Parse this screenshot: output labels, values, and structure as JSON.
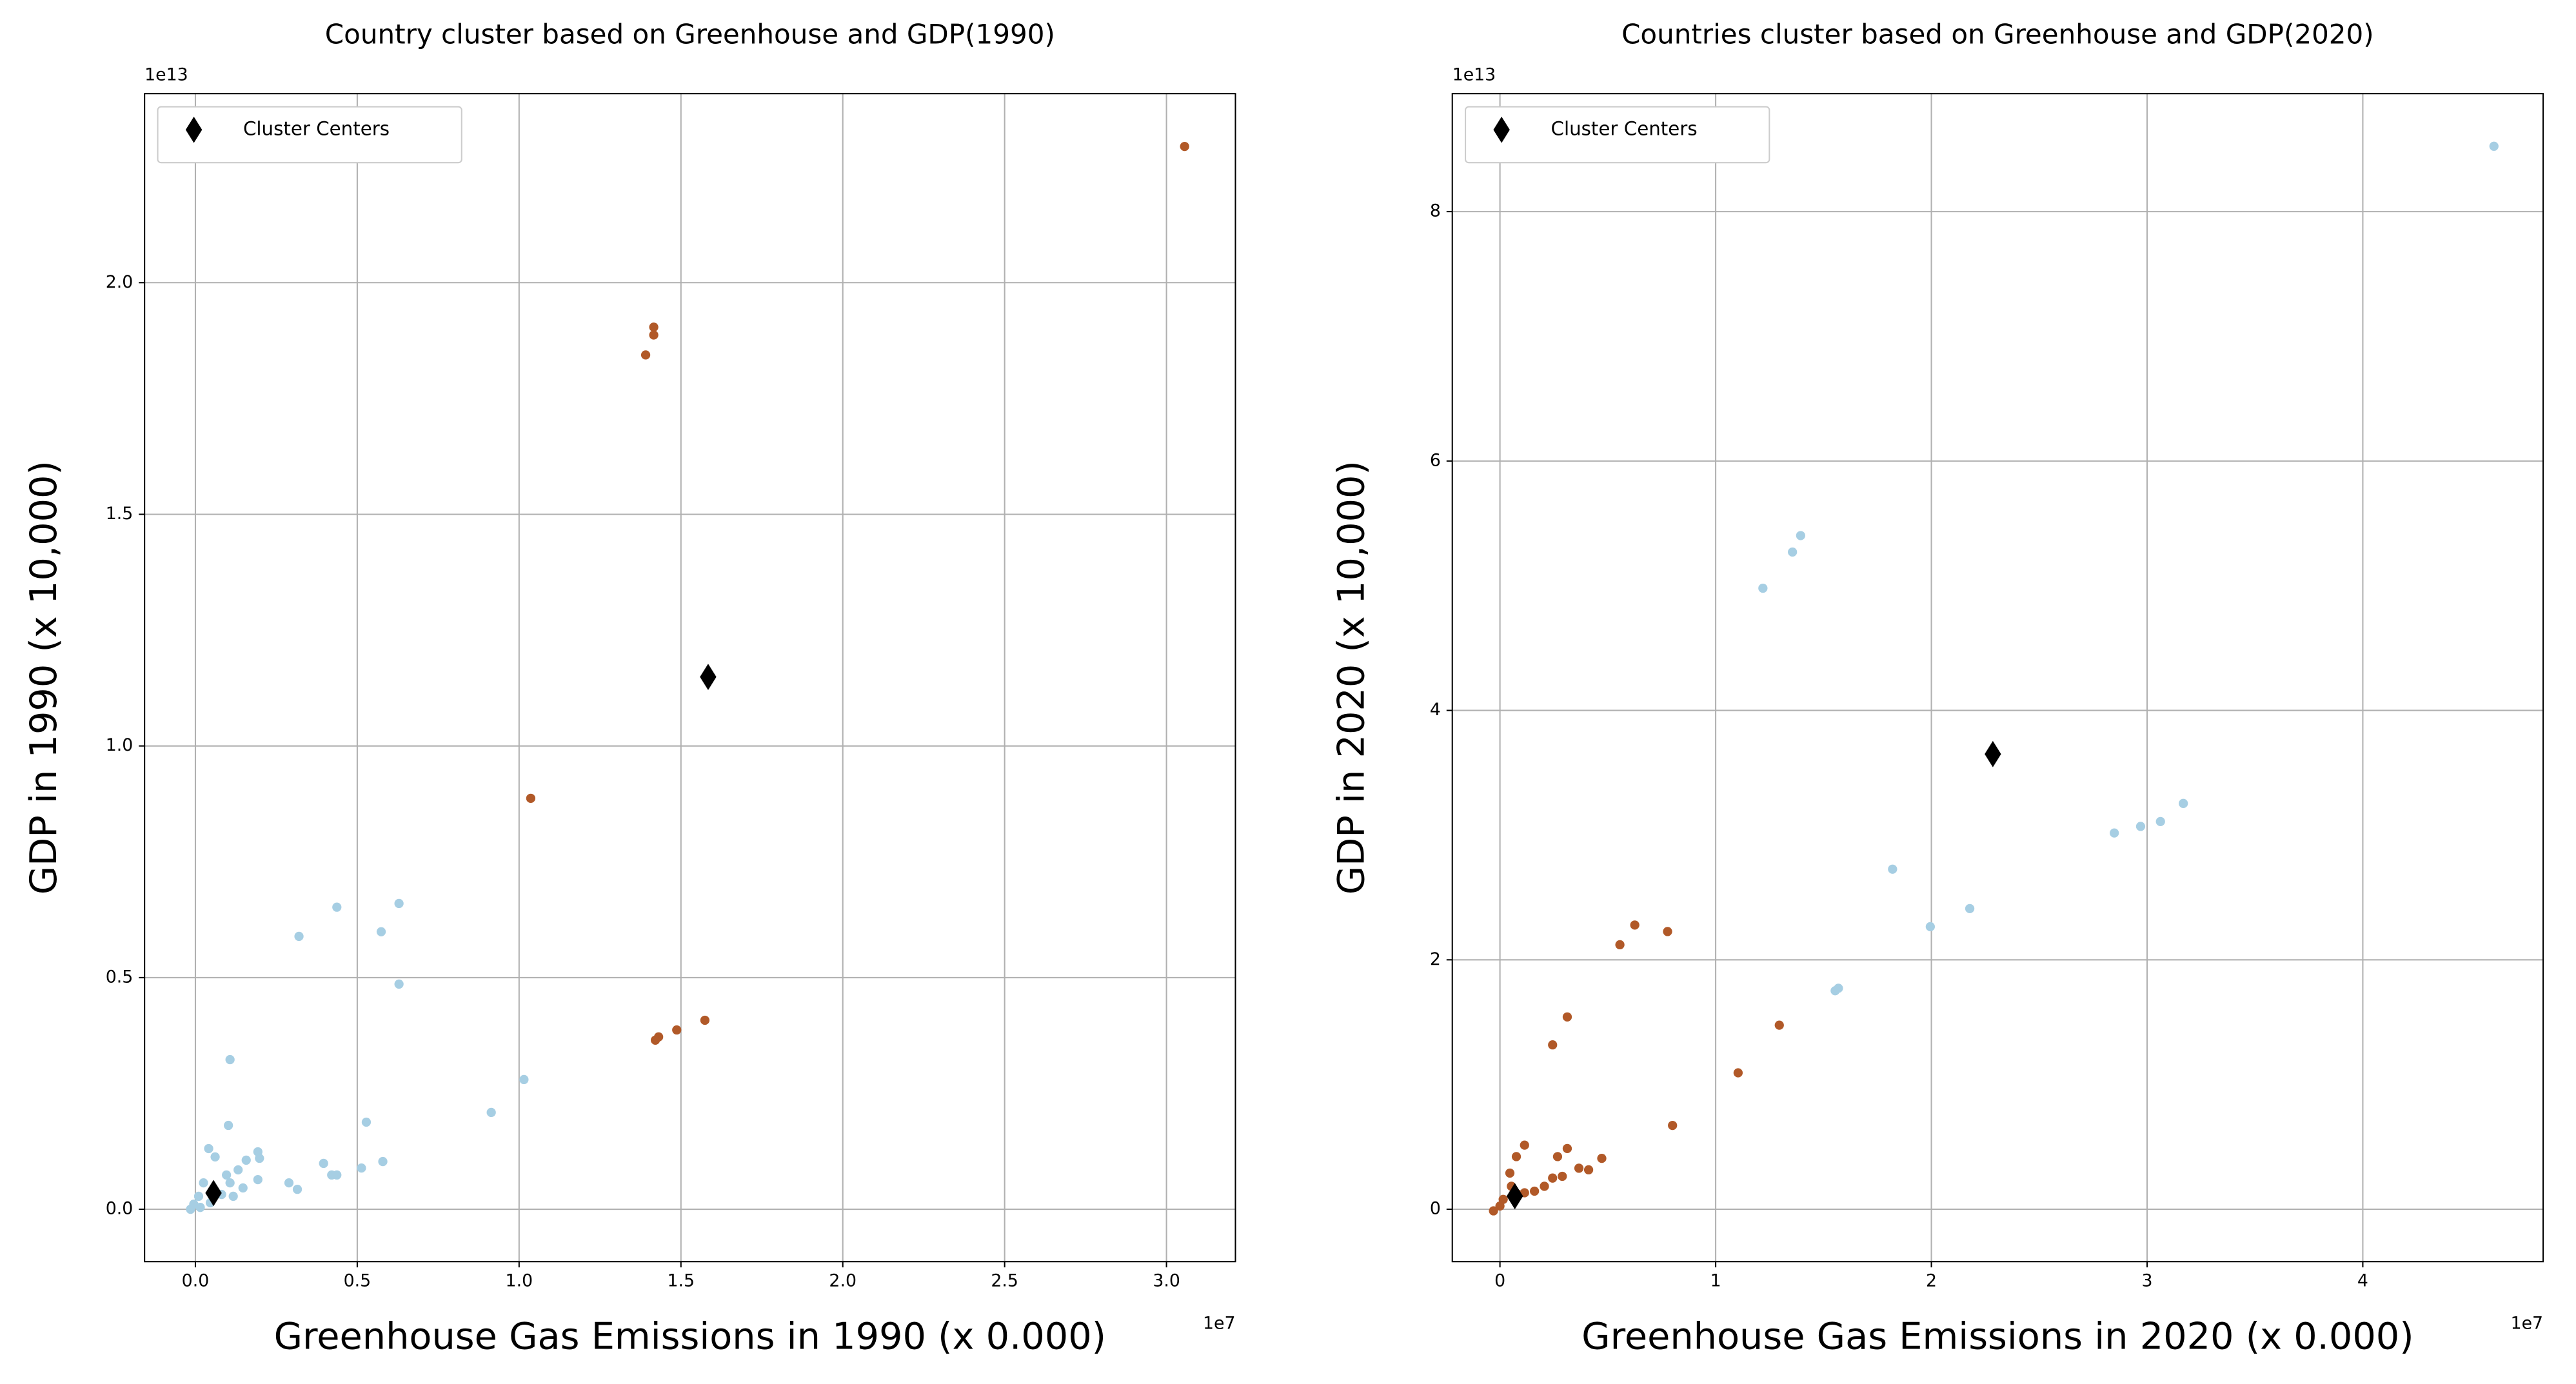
{
  "chart_data": [
    {
      "type": "scatter",
      "title": "Country cluster based on Greenhouse and GDP(1990)",
      "x_label": "Greenhouse Gas Emissions in 1990 (x 0.000)",
      "y_label": "GDP in 1990 (x 10,000)",
      "x_offset": "1e7",
      "y_offset": "1e13",
      "xlim": [
        -0.157,
        3.213
      ],
      "ylim": [
        -0.113,
        2.408
      ],
      "xticks": [
        {
          "value": 0,
          "label": "0.0"
        },
        0.5,
        {
          "value": 1,
          "label": "1.0"
        },
        1.5,
        {
          "value": 2,
          "label": "2.0"
        },
        2.5,
        {
          "value": 3,
          "label": "3.0"
        }
      ],
      "yticks": [
        {
          "value": 0,
          "label": "0.0"
        },
        0.5,
        {
          "value": 1,
          "label": "1.0"
        },
        1.5,
        {
          "value": 2,
          "label": "2.0"
        }
      ],
      "grid": true,
      "legend": "upper left",
      "series": [
        {
          "color": "#b15928",
          "marker": "circle",
          "x": [
            3.056,
            1.416,
            1.416,
            1.391,
            1.036,
            1.574,
            1.487,
            1.431,
            1.421
          ],
          "values": [
            2.294,
            1.904,
            1.887,
            1.844,
            0.887,
            0.408,
            0.387,
            0.372,
            0.365
          ]
        },
        {
          "color": "#a6cee3",
          "marker": "circle",
          "x": [
            0.629,
            0.437,
            0.32,
            0.574,
            0.629,
            0.107,
            1.015,
            0.914,
            0.528,
            0.102,
            0.579,
            0.513,
            0.396,
            0.421,
            0.437,
            0.289,
            0.315,
            0.193,
            0.198,
            0.157,
            0.193,
            0.041,
            0.061,
            0.132,
            0.107,
            0.147,
            0.025,
            0.01,
            -0.005,
            -0.015,
            0.081,
            0.117,
            0.046,
            0.096,
            0.015
          ],
          "values": [
            0.66,
            0.652,
            0.589,
            0.599,
            0.486,
            0.323,
            0.28,
            0.209,
            0.188,
            0.181,
            0.103,
            0.089,
            0.099,
            0.074,
            0.074,
            0.057,
            0.043,
            0.124,
            0.11,
            0.106,
            0.064,
            0.131,
            0.113,
            0.085,
            0.057,
            0.046,
            0.057,
            0.028,
            0.011,
            0,
            0.032,
            0.028,
            0.014,
            0.074,
            0.004
          ]
        },
        {
          "name": "Cluster Centers",
          "color": "#000000",
          "marker": "diamond",
          "x": [
            1.584,
            0.056
          ],
          "values": [
            1.149,
            0.035
          ]
        }
      ]
    },
    {
      "type": "scatter",
      "title": "Countries cluster based on Greenhouse and GDP(2020)",
      "x_label": "Greenhouse Gas Emissions in 2020 (x 0.000)",
      "y_label": "GDP in 2020 (x 10,000)",
      "x_offset": "1e7",
      "y_offset": "1e13",
      "xlim": [
        -0.221,
        4.836
      ],
      "ylim": [
        -0.42,
        8.946
      ],
      "xticks": [
        0,
        1,
        2,
        3,
        4
      ],
      "yticks": [
        0,
        2,
        4,
        6,
        8
      ],
      "grid": true,
      "legend": "upper left",
      "series": [
        {
          "color": "#a6cee3",
          "marker": "circle",
          "x": [
            4.608,
            1.394,
            1.356,
            1.219,
            3.168,
            3.062,
            2.97,
            2.848,
            1.82,
            2.178,
            1.995,
            1.569,
            1.554
          ],
          "values": [
            8.524,
            5.402,
            5.27,
            4.98,
            3.254,
            3.109,
            3.07,
            3.017,
            2.727,
            2.411,
            2.266,
            1.772,
            1.752
          ]
        },
        {
          "color": "#b15928",
          "marker": "circle",
          "x": [
            0.625,
            0.777,
            0.556,
            0.312,
            0.244,
            1.295,
            1.104,
            0.8,
            0.114,
            0.472,
            0.312,
            0.267,
            0.366,
            0.411,
            0.289,
            0.244,
            0.076,
            0.046,
            0.206,
            0.16,
            0.114,
            0.053,
            0.015,
            0,
            0.084,
            -0.03
          ],
          "values": [
            2.279,
            2.227,
            2.121,
            1.542,
            1.318,
            1.476,
            1.094,
            0.672,
            0.514,
            0.408,
            0.487,
            0.422,
            0.329,
            0.316,
            0.264,
            0.25,
            0.422,
            0.29,
            0.184,
            0.145,
            0.132,
            0.184,
            0.079,
            0.026,
            0.119,
            -0.013
          ]
        },
        {
          "name": "Cluster Centers",
          "color": "#000000",
          "marker": "diamond",
          "x": [
            2.285,
            0.069
          ],
          "values": [
            3.65,
            0.105
          ]
        }
      ]
    }
  ]
}
